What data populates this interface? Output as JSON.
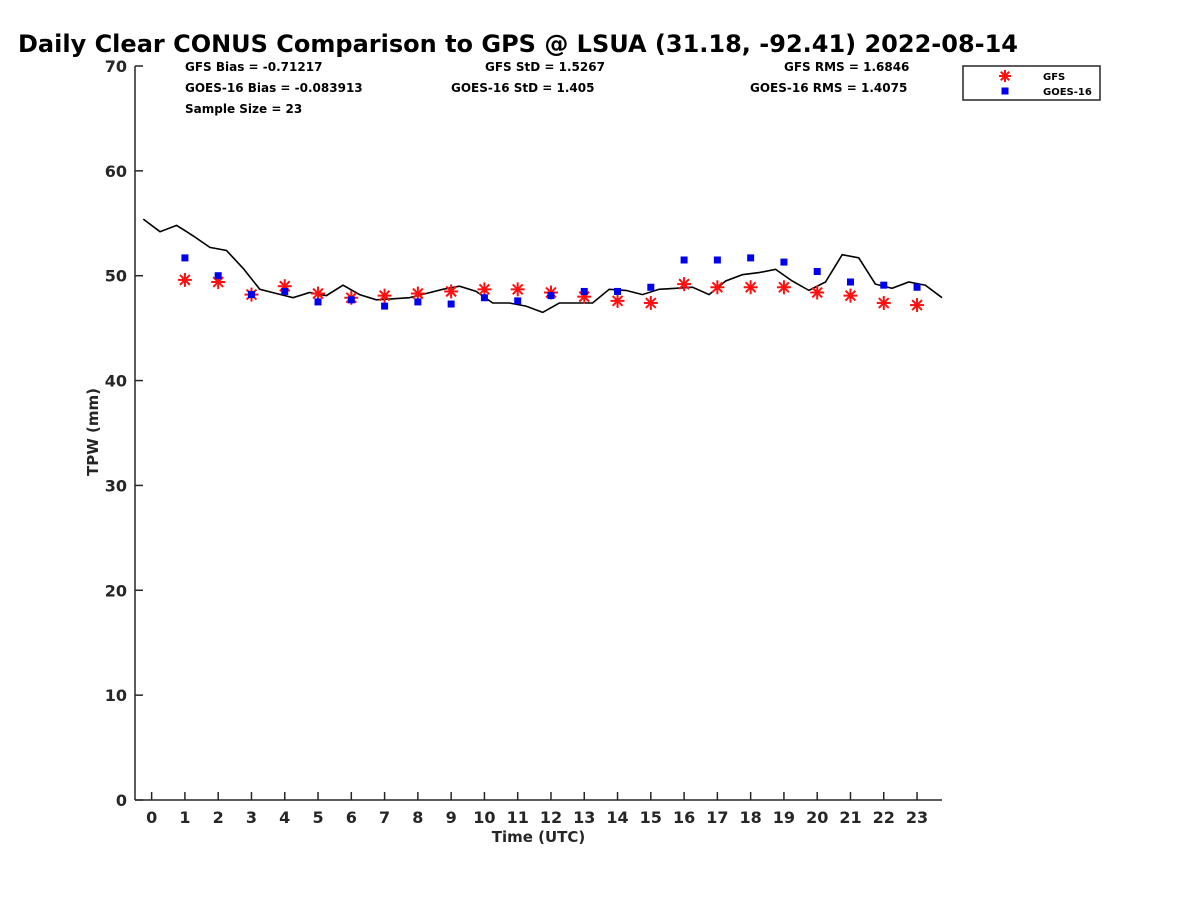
{
  "title": "Daily Clear CONUS Comparison to GPS @ LSUA (31.18, -92.41) 2022-08-14",
  "stats": {
    "gfs_bias": "GFS Bias = -0.71217",
    "goes_bias": "GOES-16 Bias = -0.083913",
    "sample_size": "Sample Size = 23",
    "gfs_std": "GFS StD = 1.5267",
    "goes_std": "GOES-16 StD = 1.405",
    "gfs_rms": "GFS RMS = 1.6846",
    "goes_rms": "GOES-16 RMS = 1.4075"
  },
  "colors": {
    "gfs": "#ff1010",
    "goes": "#0000ee",
    "gps": "#000000"
  },
  "chart_data": {
    "type": "scatter",
    "xlabel": "Time (UTC)",
    "ylabel": "TPW (mm)",
    "xlim": [
      -0.5,
      23.75
    ],
    "ylim": [
      0,
      70
    ],
    "xticks": [
      0,
      1,
      2,
      3,
      4,
      5,
      6,
      7,
      8,
      9,
      10,
      11,
      12,
      13,
      14,
      15,
      16,
      17,
      18,
      19,
      20,
      21,
      22,
      23
    ],
    "yticks": [
      0,
      10,
      20,
      30,
      40,
      50,
      60,
      70
    ],
    "legend_position": "top-right",
    "series": [
      {
        "name": "GFS",
        "marker": "asterisk",
        "x": [
          1,
          2,
          3,
          4,
          5,
          6,
          7,
          8,
          9,
          10,
          11,
          12,
          13,
          14,
          15,
          16,
          17,
          18,
          19,
          20,
          21,
          22,
          23
        ],
        "y": [
          49.6,
          49.4,
          48.2,
          49.0,
          48.3,
          47.9,
          48.1,
          48.3,
          48.5,
          48.7,
          48.7,
          48.4,
          48.0,
          47.6,
          47.4,
          49.2,
          48.9,
          48.9,
          48.9,
          48.4,
          48.1,
          47.4,
          47.2
        ]
      },
      {
        "name": "GOES-16",
        "marker": "square",
        "x": [
          1,
          2,
          3,
          4,
          5,
          6,
          7,
          8,
          9,
          10,
          11,
          12,
          13,
          14,
          15,
          16,
          17,
          18,
          19,
          20,
          21,
          22,
          23
        ],
        "y": [
          51.7,
          50.0,
          48.2,
          48.5,
          47.5,
          47.7,
          47.1,
          47.5,
          47.3,
          47.9,
          47.6,
          48.1,
          48.5,
          48.5,
          48.9,
          51.5,
          51.5,
          51.7,
          51.3,
          50.4,
          49.4,
          49.1,
          48.9
        ]
      },
      {
        "line": true,
        "x": [
          -0.25,
          0.25,
          0.75,
          1.0,
          1.25,
          1.75,
          2.25,
          2.75,
          3.25,
          3.75,
          4.25,
          4.75,
          5.25,
          5.75,
          6.25,
          6.75,
          7.25,
          7.75,
          8.25,
          8.75,
          9.25,
          9.75,
          10.25,
          10.75,
          11.25,
          11.75,
          12.25,
          12.75,
          13.25,
          13.75,
          14.25,
          14.75,
          15.25,
          15.75,
          16.25,
          16.75,
          17.25,
          17.75,
          18.25,
          18.75,
          19.25,
          19.75,
          20.25,
          20.75,
          21.25,
          21.75,
          22.25,
          22.75,
          23.25,
          23.75
        ],
        "y": [
          55.4,
          54.2,
          54.8,
          54.3,
          53.8,
          52.7,
          52.4,
          50.7,
          48.7,
          48.3,
          47.9,
          48.4,
          48.1,
          49.1,
          48.2,
          47.7,
          47.8,
          47.9,
          48.3,
          48.7,
          49.0,
          48.5,
          47.4,
          47.4,
          47.1,
          46.5,
          47.4,
          47.4,
          47.4,
          48.7,
          48.6,
          48.2,
          48.7,
          48.8,
          48.9,
          48.2,
          49.5,
          50.1,
          50.3,
          50.6,
          49.5,
          48.6,
          49.4,
          52.0,
          51.7,
          49.2,
          48.8,
          49.4,
          49.1,
          47.9
        ]
      }
    ]
  }
}
